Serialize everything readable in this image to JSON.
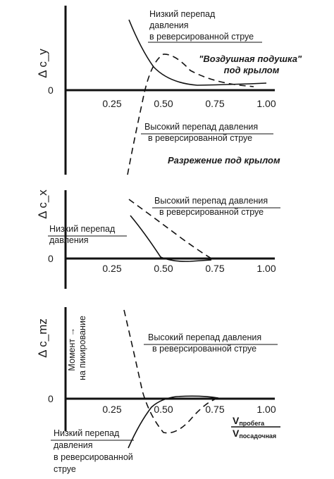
{
  "chart_data": [
    {
      "type": "line",
      "ylabel": "Δ c_y",
      "y_zero_label": "0",
      "xlim": [
        0,
        1.0
      ],
      "x_ticks": [
        "0.25",
        "0.50",
        "0.75",
        "1.00"
      ],
      "series": [
        {
          "style": "solid",
          "x": [
            0.32,
            0.35,
            0.4,
            0.45,
            0.5,
            0.55,
            0.6,
            0.7,
            0.8,
            0.9,
            1.0
          ],
          "y": [
            1.0,
            0.86,
            0.62,
            0.42,
            0.28,
            0.18,
            0.12,
            0.07,
            0.05,
            0.04,
            0.035
          ]
        },
        {
          "style": "dashed",
          "x": [
            0.32,
            0.35,
            0.4,
            0.43,
            0.46,
            0.5,
            0.53,
            0.58,
            0.65,
            0.72,
            0.8,
            0.88
          ],
          "y": [
            -1.2,
            -0.78,
            -0.1,
            0.25,
            0.42,
            0.48,
            0.45,
            0.35,
            0.22,
            0.12,
            0.06,
            0.03
          ]
        }
      ],
      "annotations": [
        {
          "lines": [
            "Низкий перепад",
            "давления",
            "в реверсированной струе"
          ]
        },
        {
          "lines": [
            "Высокий перепад давления",
            "в реверсированной струе"
          ]
        },
        {
          "lines": [
            "\"Воздушная подушка\"",
            "под крылом"
          ],
          "style": "italic"
        },
        {
          "lines": [
            "Разрежение под крылом"
          ],
          "style": "italic"
        }
      ]
    },
    {
      "type": "line",
      "ylabel": "Δ c_x",
      "y_zero_label": "0",
      "xlim": [
        0,
        1.0
      ],
      "x_ticks": [
        "0.25",
        "0.50",
        "0.75",
        "1.00"
      ],
      "series": [
        {
          "style": "solid",
          "x": [
            0.32,
            0.36,
            0.4,
            0.44,
            0.48,
            0.52,
            0.58,
            0.65,
            0.72
          ],
          "y": [
            0.55,
            0.42,
            0.28,
            0.13,
            0.02,
            -0.03,
            -0.03,
            -0.02,
            -0.01
          ]
        },
        {
          "style": "dashed",
          "x": [
            0.32,
            0.38,
            0.45,
            0.52,
            0.6,
            0.66,
            0.7,
            0.73
          ],
          "y": [
            0.95,
            0.78,
            0.58,
            0.4,
            0.22,
            0.1,
            0.04,
            0.0
          ]
        }
      ],
      "annotations": [
        {
          "lines": [
            "Высокий перепад давления",
            "в реверсированной струе"
          ]
        },
        {
          "lines": [
            "Низкий перепад",
            "давления"
          ]
        }
      ]
    },
    {
      "type": "line",
      "ylabel": "Δ c_mz",
      "y_zero_label": "0",
      "y_arrow_label": [
        "Момент →",
        "на пикирование"
      ],
      "xlim": [
        0,
        1.0
      ],
      "x_ticks": [
        "0.25",
        "0.50",
        "0.75",
        "1.00"
      ],
      "x_fraction": {
        "numerator": "V",
        "numerator_sub": "пробега",
        "denominator": "V",
        "denominator_sub": "посадочная"
      },
      "series": [
        {
          "style": "dashed",
          "x": [
            0.32,
            0.34,
            0.37,
            0.4,
            0.43,
            0.46,
            0.49,
            0.52,
            0.56,
            0.6,
            0.64,
            0.68,
            0.72,
            0.76
          ],
          "y": [
            1.0,
            0.6,
            0.25,
            0.02,
            -0.15,
            -0.3,
            -0.36,
            -0.34,
            -0.25,
            -0.12,
            -0.04,
            0.0,
            0.02,
            0.0
          ]
        },
        {
          "style": "solid",
          "x": [
            0.33,
            0.37,
            0.41,
            0.45,
            0.5,
            0.55,
            0.6,
            0.66,
            0.72
          ],
          "y": [
            -0.75,
            -0.4,
            -0.12,
            0.0,
            0.05,
            0.06,
            0.05,
            0.03,
            0.01
          ]
        }
      ],
      "annotations": [
        {
          "lines": [
            "Высокий перепад давления",
            "в реверсированной струе"
          ]
        },
        {
          "lines": [
            "Низкий перепад",
            "давления",
            "в реверсированной",
            "струе"
          ]
        }
      ]
    }
  ]
}
